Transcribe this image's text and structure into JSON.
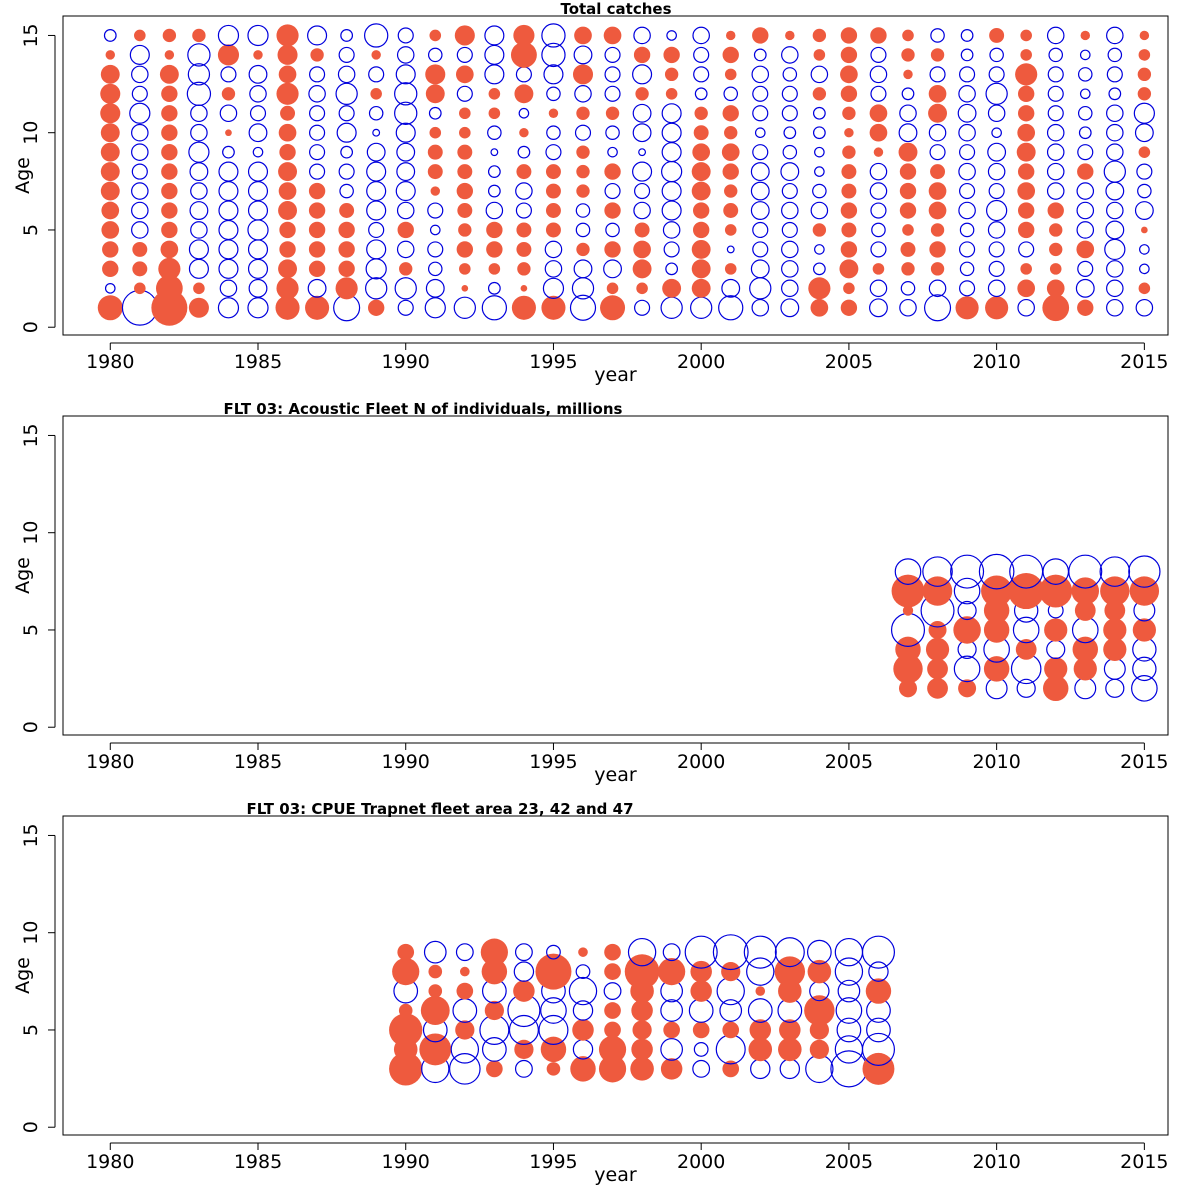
{
  "colors": {
    "positive": "#EE5A3E",
    "negative": "#0000DD"
  },
  "chart_data": [
    {
      "type": "scatter",
      "title": "Total catches",
      "xlabel": "year",
      "ylabel": "Age",
      "xlim": [
        1978.4,
        2015.8
      ],
      "ylim": [
        -0.4,
        16
      ],
      "xticks": [
        1980,
        1985,
        1990,
        1995,
        2000,
        2005,
        2010,
        2015
      ],
      "yticks": [
        0,
        5,
        10,
        15
      ],
      "years": [
        1980,
        1981,
        1982,
        1983,
        1984,
        1985,
        1986,
        1987,
        1988,
        1989,
        1990,
        1991,
        1992,
        1993,
        1994,
        1995,
        1996,
        1997,
        1998,
        1999,
        2000,
        2001,
        2002,
        2003,
        2004,
        2005,
        2006,
        2007,
        2008,
        2009,
        2010,
        2011,
        2012,
        2013,
        2014,
        2015
      ],
      "ages": [
        1,
        2,
        3,
        4,
        5,
        6,
        7,
        8,
        9,
        10,
        11,
        12,
        13,
        14,
        15
      ],
      "matrix": [
        [
          1.4,
          -2.7,
          2.9,
          0.9,
          -0.9,
          -0.9,
          1.3,
          1.3,
          -1.5,
          0.6,
          -0.5,
          -0.9,
          -1.0,
          -1.3,
          1.3,
          1.3,
          -1.4,
          1.4,
          -0.5,
          -1.0,
          -1.0,
          -1.3,
          -0.6,
          -0.7,
          0.7,
          0.6,
          -0.7,
          -0.6,
          -1.5,
          1.2,
          1.2,
          -0.6,
          1.6,
          0.6,
          -0.6,
          -0.6
        ],
        [
          -0.2,
          0.3,
          1.6,
          0.3,
          -0.6,
          -0.7,
          1.1,
          -0.7,
          1.1,
          -1.0,
          -1.0,
          -0.7,
          0.1,
          -0.3,
          0.1,
          -0.9,
          -1.0,
          0.3,
          0.3,
          0.8,
          0.8,
          -0.7,
          -1.0,
          -0.6,
          1.1,
          0.3,
          -0.6,
          -0.4,
          -0.6,
          -0.5,
          -0.6,
          0.7,
          0.7,
          -0.7,
          -0.6,
          0.3
        ],
        [
          0.6,
          0.5,
          1.1,
          -0.8,
          -0.8,
          -0.8,
          0.8,
          0.6,
          0.6,
          -0.9,
          0.4,
          -0.4,
          0.3,
          0.3,
          0.4,
          -0.6,
          -0.7,
          -0.7,
          0.8,
          -0.3,
          0.8,
          0.3,
          -0.7,
          -0.6,
          -0.3,
          0.8,
          0.3,
          0.4,
          0.4,
          -0.4,
          -0.5,
          0.3,
          0.3,
          -0.5,
          -0.6,
          -0.2
        ],
        [
          0.6,
          0.5,
          0.7,
          -0.8,
          -0.8,
          -0.8,
          0.6,
          0.6,
          0.6,
          -0.8,
          -0.6,
          -0.5,
          0.6,
          0.6,
          0.5,
          -0.6,
          0.4,
          0.6,
          0.7,
          -0.5,
          0.8,
          -0.1,
          -0.5,
          -0.6,
          -0.2,
          0.6,
          -0.5,
          0.5,
          0.6,
          -0.5,
          -0.5,
          -0.5,
          0.4,
          0.7,
          -0.9,
          -0.2
        ],
        [
          0.7,
          -0.6,
          0.6,
          -0.6,
          -0.8,
          -0.9,
          0.6,
          0.6,
          0.6,
          -0.5,
          0.6,
          -0.2,
          0.4,
          0.6,
          0.5,
          0.5,
          -0.4,
          -0.4,
          0.5,
          -0.6,
          0.6,
          0.3,
          -0.5,
          -0.5,
          0.4,
          0.5,
          -0.4,
          0.3,
          0.4,
          -0.4,
          -0.6,
          0.6,
          0.4,
          -0.6,
          -0.7,
          0.1
        ],
        [
          0.7,
          -0.6,
          0.6,
          -0.7,
          -0.8,
          -0.8,
          0.8,
          0.6,
          0.5,
          -0.8,
          -0.6,
          -0.5,
          0.5,
          -0.6,
          -0.5,
          0.5,
          -0.4,
          0.6,
          -0.6,
          -0.8,
          0.6,
          0.5,
          -0.7,
          -0.6,
          -0.6,
          0.6,
          -0.5,
          0.6,
          0.7,
          -0.6,
          -0.9,
          0.6,
          0.6,
          -0.6,
          -0.6,
          -0.7
        ],
        [
          0.8,
          -0.6,
          0.6,
          -0.6,
          -0.8,
          -0.8,
          0.7,
          0.6,
          -0.4,
          -0.8,
          -0.8,
          0.2,
          0.6,
          -0.3,
          -0.6,
          0.5,
          0.4,
          -0.5,
          -0.5,
          -0.8,
          0.8,
          0.4,
          -0.7,
          -0.5,
          -0.4,
          0.5,
          -0.6,
          0.6,
          0.7,
          -0.5,
          -0.5,
          0.7,
          -0.6,
          -0.6,
          -0.7,
          -0.4
        ],
        [
          0.8,
          -0.5,
          0.6,
          -0.7,
          -0.8,
          -0.8,
          0.8,
          -0.5,
          -0.5,
          -0.8,
          -0.7,
          0.5,
          0.5,
          -0.3,
          0.5,
          0.5,
          0.4,
          0.6,
          -0.8,
          -0.9,
          0.8,
          0.6,
          -0.7,
          -0.7,
          -0.2,
          0.5,
          -0.6,
          0.6,
          0.5,
          -0.6,
          -0.6,
          0.6,
          -0.6,
          0.6,
          -1.0,
          -0.5
        ],
        [
          0.8,
          -0.6,
          0.6,
          -0.9,
          -0.3,
          -0.2,
          0.6,
          -0.5,
          -0.3,
          -0.7,
          -0.7,
          0.5,
          0.5,
          -0.1,
          -0.3,
          -0.5,
          0.4,
          -0.2,
          -0.1,
          -0.8,
          0.7,
          0.7,
          -0.5,
          -0.4,
          -0.2,
          0.4,
          0.2,
          0.8,
          -0.5,
          -0.5,
          -0.7,
          0.8,
          -0.6,
          -0.5,
          -0.6,
          0.3
        ],
        [
          0.8,
          -0.6,
          0.6,
          -0.6,
          0.1,
          -0.7,
          0.7,
          -0.5,
          -0.8,
          -0.1,
          -0.8,
          0.3,
          0.3,
          -0.4,
          0.2,
          -0.4,
          -0.5,
          -0.4,
          -0.7,
          -0.8,
          0.5,
          0.4,
          -0.2,
          -0.3,
          -0.3,
          0.2,
          0.7,
          -0.7,
          -0.6,
          -0.6,
          -0.2,
          0.7,
          -0.6,
          -0.3,
          -0.6,
          -0.7
        ],
        [
          0.9,
          -0.9,
          0.6,
          -0.6,
          -0.6,
          -0.5,
          0.5,
          -0.5,
          -0.5,
          -0.4,
          -1.1,
          -0.3,
          0.3,
          0.3,
          -0.2,
          0.2,
          0.4,
          0.4,
          -0.7,
          -0.8,
          0.4,
          0.6,
          -0.5,
          -0.5,
          -0.3,
          0.4,
          0.7,
          -0.6,
          0.8,
          -0.7,
          -0.6,
          0.6,
          -0.5,
          -0.4,
          -0.6,
          -0.9
        ],
        [
          0.9,
          -0.5,
          0.6,
          -1.2,
          0.4,
          -0.6,
          1.1,
          -0.6,
          -1.0,
          0.3,
          -1.1,
          0.8,
          -0.5,
          0.3,
          0.8,
          -0.4,
          -0.6,
          -0.5,
          0.4,
          0.3,
          -0.3,
          -0.4,
          -0.5,
          -0.5,
          0.4,
          0.6,
          -0.5,
          -0.3,
          0.7,
          -0.6,
          -1.0,
          0.6,
          -0.5,
          -0.2,
          -0.3,
          0.4
        ],
        [
          0.8,
          -0.6,
          0.8,
          -1.0,
          -0.5,
          -0.7,
          0.7,
          -0.5,
          -0.6,
          -0.5,
          -0.8,
          0.9,
          0.7,
          -0.8,
          -0.5,
          -0.8,
          0.9,
          -0.5,
          -0.8,
          0.4,
          -0.5,
          0.3,
          -0.6,
          -0.4,
          -0.6,
          0.7,
          -0.6,
          0.2,
          -0.5,
          -0.5,
          -0.5,
          1.1,
          -0.5,
          -0.4,
          -0.5,
          0.4
        ],
        [
          0.2,
          -0.8,
          0.2,
          -1.1,
          1.0,
          0.2,
          0.9,
          0.4,
          -0.5,
          0.2,
          -0.6,
          -0.4,
          -0.5,
          -0.8,
          1.5,
          -1.2,
          -0.7,
          -0.5,
          0.6,
          0.6,
          -0.5,
          0.6,
          -0.3,
          -0.6,
          0.3,
          0.6,
          -0.5,
          0.4,
          0.4,
          -0.3,
          -0.4,
          0.3,
          -0.4,
          -0.2,
          -0.4,
          0.3
        ],
        [
          -0.3,
          0.3,
          0.4,
          0.4,
          -0.9,
          -0.9,
          1.1,
          -0.8,
          -0.3,
          -1.2,
          -0.5,
          0.3,
          0.9,
          -0.8,
          1.0,
          -1.2,
          0.7,
          0.7,
          -0.6,
          -0.2,
          -0.6,
          0.2,
          0.6,
          0.2,
          0.4,
          0.6,
          0.6,
          0.3,
          -0.4,
          -0.3,
          0.5,
          0.3,
          -0.6,
          0.2,
          -0.6,
          0.2
        ]
      ]
    },
    {
      "type": "scatter",
      "title": "FLT 03: Acoustic Fleet   N of individuals, millions",
      "xlabel": "year",
      "ylabel": "Age",
      "xlim": [
        1978.4,
        2015.8
      ],
      "ylim": [
        -0.4,
        16
      ],
      "xticks": [
        1980,
        1985,
        1990,
        1995,
        2000,
        2005,
        2010,
        2015
      ],
      "yticks": [
        0,
        5,
        10,
        15
      ],
      "years": [
        2007,
        2008,
        2009,
        2010,
        2011,
        2012,
        2013,
        2014,
        2015
      ],
      "ages": [
        2,
        3,
        4,
        5,
        6,
        7,
        8
      ],
      "matrix": [
        [
          0.3,
          0.4,
          0.3,
          -0.4,
          -0.3,
          0.6,
          -0.4,
          -0.3,
          -0.6
        ],
        [
          0.8,
          0.4,
          -0.6,
          0.6,
          -0.8,
          0.5,
          0.5,
          -0.4,
          -0.5
        ],
        [
          0.6,
          0.5,
          -0.3,
          -0.6,
          0.4,
          -0.3,
          0.6,
          0.5,
          -0.5
        ],
        [
          -1.0,
          0.3,
          0.7,
          0.6,
          -0.6,
          0.5,
          -0.6,
          0.5,
          0.5
        ],
        [
          0.1,
          -1.0,
          -0.3,
          0.6,
          -0.5,
          -0.2,
          0.4,
          0.4,
          -0.4
        ],
        [
          1.0,
          0.8,
          -0.6,
          0.9,
          1.2,
          1.0,
          0.7,
          0.8,
          0.8
        ],
        [
          -0.6,
          -0.8,
          -1.0,
          -1.1,
          -1.0,
          -0.6,
          -1.0,
          -0.8,
          -0.9
        ]
      ]
    },
    {
      "type": "scatter",
      "title": "FLT 03: CPUE Trapnet fleet area 23, 42 and 47",
      "xlabel": "year",
      "ylabel": "Age",
      "xlim": [
        1978.4,
        2015.8
      ],
      "ylim": [
        -0.4,
        16
      ],
      "xticks": [
        1980,
        1985,
        1990,
        1995,
        2000,
        2005,
        2010,
        2015
      ],
      "yticks": [
        0,
        5,
        10,
        15
      ],
      "years": [
        1990,
        1991,
        1992,
        1993,
        1994,
        1995,
        1996,
        1997,
        1998,
        1999,
        2000,
        2001,
        2002,
        2003,
        2004,
        2005,
        2006
      ],
      "ages": [
        3,
        4,
        5,
        6,
        7,
        8,
        9
      ],
      "matrix": [
        [
          1.2,
          -0.8,
          -1.0,
          0.3,
          -0.3,
          0.2,
          0.7,
          0.8,
          0.6,
          0.5,
          -0.3,
          0.3,
          -0.4,
          -0.4,
          -0.8,
          -1.4,
          1.1
        ],
        [
          0.6,
          1.1,
          -0.8,
          -0.6,
          0.4,
          0.7,
          -0.4,
          0.8,
          0.5,
          -0.5,
          -0.2,
          -0.9,
          0.6,
          0.6,
          0.4,
          -0.8,
          -1.1
        ],
        [
          1.2,
          -0.6,
          0.4,
          -0.9,
          -0.9,
          -0.9,
          0.5,
          0.3,
          0.4,
          0.3,
          0.3,
          0.3,
          0.5,
          0.5,
          0.4,
          -0.6,
          -0.6
        ],
        [
          0.2,
          0.9,
          -0.6,
          0.4,
          -1.1,
          -0.7,
          -0.4,
          0.3,
          0.5,
          -0.5,
          -0.6,
          -0.5,
          -0.6,
          -0.6,
          1.0,
          -0.7,
          -0.6
        ],
        [
          -0.6,
          0.2,
          0.3,
          -0.6,
          0.5,
          -0.6,
          -0.8,
          -0.3,
          0.6,
          -0.5,
          0.5,
          -0.8,
          0.1,
          0.6,
          -0.4,
          -0.5,
          0.7
        ],
        [
          0.8,
          0.2,
          0.1,
          0.7,
          -0.4,
          1.4,
          -0.2,
          0.3,
          1.3,
          0.8,
          0.5,
          0.4,
          -0.8,
          1.0,
          0.6,
          -0.8,
          -0.4
        ],
        [
          0.3,
          -0.5,
          -0.3,
          0.8,
          -0.3,
          -0.2,
          0.1,
          0.3,
          -0.8,
          -0.3,
          -1.1,
          -1.3,
          -1.1,
          -0.9,
          -0.6,
          -0.8,
          -1.1
        ]
      ]
    }
  ]
}
